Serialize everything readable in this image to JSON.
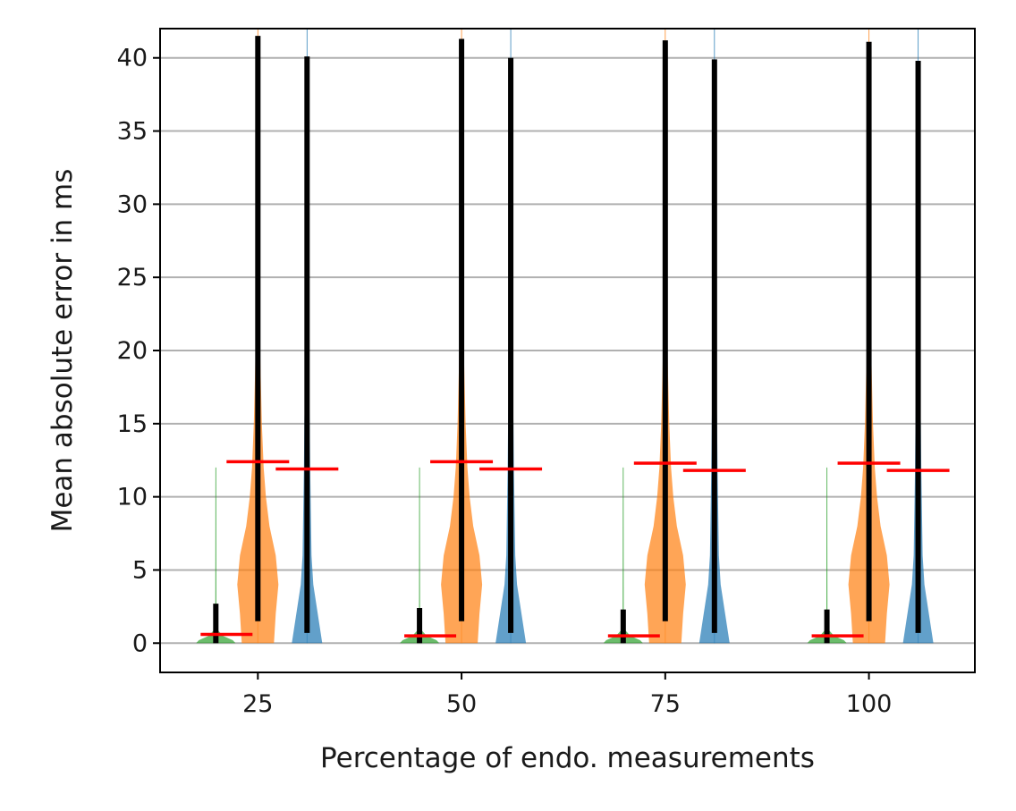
{
  "chart_data": {
    "type": "violin",
    "xlabel": "Percentage of endo. measurements",
    "ylabel": "Mean absolute error in ms",
    "categories": [
      "25",
      "50",
      "75",
      "100"
    ],
    "xlim": [
      13,
      113
    ],
    "ylim": [
      -2,
      42
    ],
    "yticks": [
      0,
      5,
      10,
      15,
      20,
      25,
      30,
      35,
      40
    ],
    "grid": "horizontal",
    "groups": [
      {
        "category": "25",
        "violins": [
          {
            "color": "#2ca02c",
            "max": 12.0,
            "range": [
              0,
              2.7
            ],
            "mean": 0.6
          },
          {
            "color": "#ff7f0e",
            "max": 42.0,
            "range": [
              1.5,
              41.5
            ],
            "mean": 12.4
          },
          {
            "color": "#1f77b4",
            "max": 42.0,
            "range": [
              0.7,
              40.1
            ],
            "mean": 11.9
          }
        ]
      },
      {
        "category": "50",
        "violins": [
          {
            "color": "#2ca02c",
            "max": 12.0,
            "range": [
              0,
              2.4
            ],
            "mean": 0.5
          },
          {
            "color": "#ff7f0e",
            "max": 42.0,
            "range": [
              1.5,
              41.3
            ],
            "mean": 12.4
          },
          {
            "color": "#1f77b4",
            "max": 42.0,
            "range": [
              0.7,
              40.0
            ],
            "mean": 11.9
          }
        ]
      },
      {
        "category": "75",
        "violins": [
          {
            "color": "#2ca02c",
            "max": 12.0,
            "range": [
              0,
              2.3
            ],
            "mean": 0.5
          },
          {
            "color": "#ff7f0e",
            "max": 42.0,
            "range": [
              1.5,
              41.2
            ],
            "mean": 12.3
          },
          {
            "color": "#1f77b4",
            "max": 42.0,
            "range": [
              0.7,
              39.9
            ],
            "mean": 11.8
          }
        ]
      },
      {
        "category": "100",
        "violins": [
          {
            "color": "#2ca02c",
            "max": 12.0,
            "range": [
              0,
              2.3
            ],
            "mean": 0.5
          },
          {
            "color": "#ff7f0e",
            "max": 42.0,
            "range": [
              1.5,
              41.1
            ],
            "mean": 12.3
          },
          {
            "color": "#1f77b4",
            "max": 42.0,
            "range": [
              0.7,
              39.8
            ],
            "mean": 11.8
          }
        ]
      }
    ],
    "colors": {
      "mean_line": "#ff0000",
      "range_bar": "#000000",
      "grid": "#b0b0b0"
    }
  }
}
